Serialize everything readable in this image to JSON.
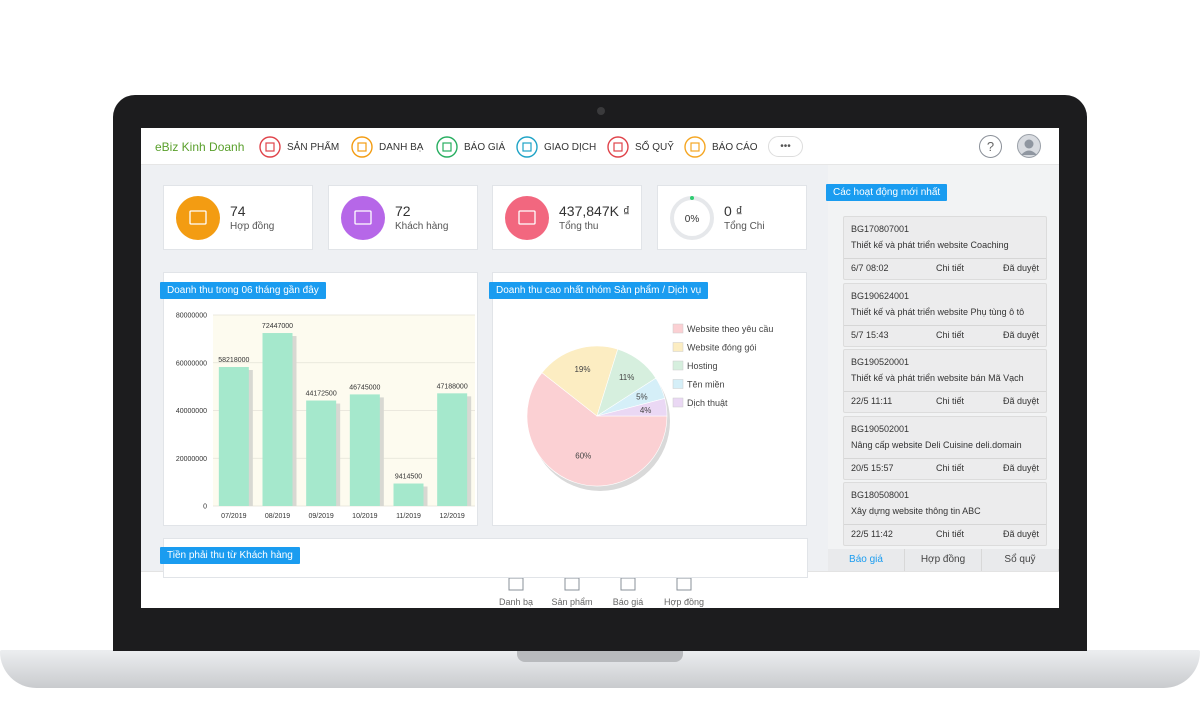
{
  "brand": "eBiz Kinh Doanh",
  "nav": [
    "SẢN PHẨM",
    "DANH BẠ",
    "BÁO GIÁ",
    "GIAO DỊCH",
    "SỔ QUỸ",
    "BÁO CÁO",
    "•••"
  ],
  "help": "?",
  "stats": [
    {
      "value": "74",
      "label": "Hợp đồng"
    },
    {
      "value": "72",
      "label": "Khách hàng"
    },
    {
      "value": "437,847K ₫",
      "label": "Tổng thu"
    },
    {
      "gauge": "0%",
      "value": "0 ₫",
      "label": "Tổng Chi"
    }
  ],
  "chart_data": [
    {
      "type": "bar",
      "title": "Doanh thu trong 06 tháng gần đây",
      "categories": [
        "07/2019",
        "08/2019",
        "09/2019",
        "10/2019",
        "11/2019",
        "12/2019"
      ],
      "values": [
        58218000,
        72447000,
        44172500,
        46745000,
        9414500,
        47188000
      ],
      "color": "#a5e8cc",
      "ylim": [
        0,
        80000000
      ],
      "yticks": [
        0,
        20000000,
        40000000,
        60000000,
        80000000
      ],
      "grid": true
    },
    {
      "type": "pie",
      "title": "Doanh thu cao nhất nhóm Sản phẩm / Dịch vụ",
      "categories": [
        "Website theo yêu cầu",
        "Website đóng gói",
        "Hosting",
        "Tên miền",
        "Dịch thuật"
      ],
      "values": [
        60,
        19,
        11,
        5,
        4
      ],
      "value_labels": [
        "60%",
        "19%",
        "11%",
        "5%",
        "4%"
      ],
      "colors": [
        "#fbd0d3",
        "#fcedc2",
        "#d6efde",
        "#d5eff8",
        "#ead8f4"
      ],
      "legend": "right"
    }
  ],
  "receivable": {
    "title": "Tiền phải thu từ Khách hàng"
  },
  "activity": {
    "title": "Các hoạt động mới nhất",
    "items": [
      {
        "code": "BG170807001",
        "desc": "Thiết kế và phát triển website Coaching",
        "time": "6/7 08:02",
        "detail": "Chi tiết",
        "status": "Đã duyệt"
      },
      {
        "code": "BG190624001",
        "desc": "Thiết kế và phát triển website Phụ tùng ô tô",
        "time": "5/7 15:43",
        "detail": "Chi tiết",
        "status": "Đã duyệt"
      },
      {
        "code": "BG190520001",
        "desc": "Thiết kế và phát triển website bán Mã Vạch",
        "time": "22/5 11:11",
        "detail": "Chi tiết",
        "status": "Đã duyệt"
      },
      {
        "code": "BG190502001",
        "desc": "Nâng cấp website Deli Cuisine deli.domain",
        "time": "20/5 15:57",
        "detail": "Chi tiết",
        "status": "Đã duyệt"
      },
      {
        "code": "BG180508001",
        "desc": "Xây dựng website thông tin ABC",
        "time": "22/5 11:42",
        "detail": "Chi tiết",
        "status": "Đã duyệt"
      }
    ],
    "tabs": [
      "Báo giá",
      "Hợp đồng",
      "Sổ quỹ"
    ]
  },
  "bottom_nav": [
    "Danh bạ",
    "Sản phẩm",
    "Báo giá",
    "Hợp đồng"
  ]
}
